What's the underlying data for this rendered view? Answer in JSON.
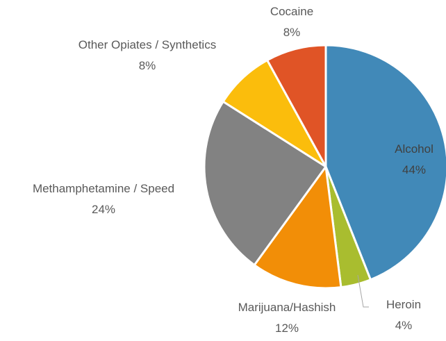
{
  "chart_data": {
    "type": "pie",
    "title": "",
    "slices": [
      {
        "label": "Alcohol",
        "value": 44,
        "value_label": "44%",
        "color": "#4189b8"
      },
      {
        "label": "Heroin",
        "value": 4,
        "value_label": "4%",
        "color": "#a9bd2f"
      },
      {
        "label": "Marijuana/Hashish",
        "value": 12,
        "value_label": "12%",
        "color": "#f28e07"
      },
      {
        "label": "Methamphetamine / Speed",
        "value": 24,
        "value_label": "24%",
        "color": "#828282"
      },
      {
        "label": "Other Opiates / Synthetics",
        "value": 8,
        "value_label": "8%",
        "color": "#fbbd0c"
      },
      {
        "label": "Cocaine",
        "value": 8,
        "value_label": "8%",
        "color": "#e05426"
      }
    ],
    "start_angle": "12 o'clock",
    "direction": "clockwise",
    "legend": "none"
  }
}
